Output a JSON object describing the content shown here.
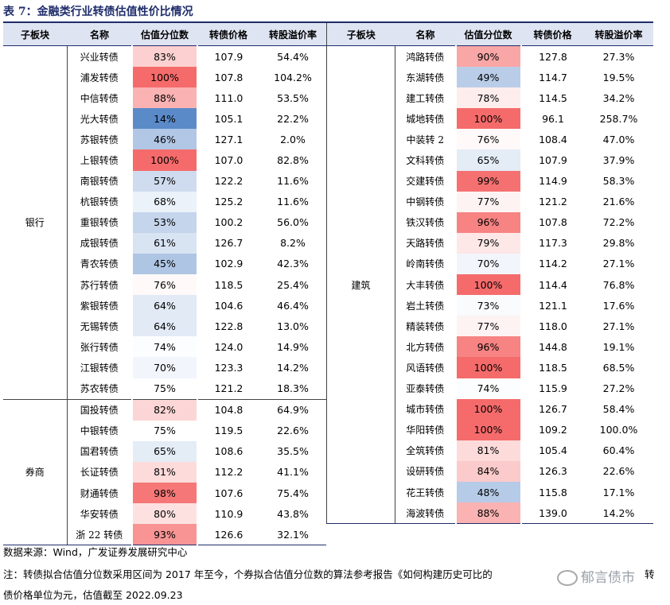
{
  "title": "表 7：金融类行业转债估值性价比情况",
  "headers": [
    "子板块",
    "名称",
    "估值分位数",
    "转债价格",
    "转股溢价率"
  ],
  "left": {
    "groups": [
      {
        "name": "银行",
        "rows": [
          [
            "兴业转债",
            "83%",
            "107.9",
            "54.4%"
          ],
          [
            "浦发转债",
            "100%",
            "107.8",
            "104.2%"
          ],
          [
            "中信转债",
            "88%",
            "111.0",
            "53.5%"
          ],
          [
            "光大转债",
            "14%",
            "105.1",
            "22.2%"
          ],
          [
            "苏银转债",
            "46%",
            "127.1",
            "2.0%"
          ],
          [
            "上银转债",
            "100%",
            "107.0",
            "82.8%"
          ],
          [
            "南银转债",
            "57%",
            "122.2",
            "11.6%"
          ],
          [
            "杭银转债",
            "68%",
            "125.2",
            "11.6%"
          ],
          [
            "重银转债",
            "53%",
            "100.2",
            "56.0%"
          ],
          [
            "成银转债",
            "61%",
            "126.7",
            "8.2%"
          ],
          [
            "青农转债",
            "45%",
            "102.9",
            "42.3%"
          ],
          [
            "苏行转债",
            "76%",
            "118.5",
            "25.4%"
          ],
          [
            "紫银转债",
            "64%",
            "104.6",
            "46.4%"
          ],
          [
            "无锡转债",
            "64%",
            "122.8",
            "13.0%"
          ],
          [
            "张行转债",
            "74%",
            "124.0",
            "14.9%"
          ],
          [
            "江银转债",
            "70%",
            "123.3",
            "14.2%"
          ],
          [
            "苏农转债",
            "75%",
            "121.2",
            "18.3%"
          ]
        ]
      },
      {
        "name": "券商",
        "rows": [
          [
            "国投转债",
            "82%",
            "104.8",
            "64.9%"
          ],
          [
            "中银转债",
            "75%",
            "119.5",
            "22.6%"
          ],
          [
            "国君转债",
            "65%",
            "108.6",
            "35.5%"
          ],
          [
            "长证转债",
            "81%",
            "112.2",
            "41.1%"
          ],
          [
            "财通转债",
            "98%",
            "107.6",
            "75.4%"
          ],
          [
            "华安转债",
            "80%",
            "110.9",
            "43.8%"
          ],
          [
            "浙 22 转债",
            "93%",
            "126.6",
            "32.1%"
          ]
        ]
      }
    ]
  },
  "right": {
    "groups": [
      {
        "name": "建筑",
        "rows": [
          [
            "鸿路转债",
            "90%",
            "127.8",
            "27.3%"
          ],
          [
            "东湖转债",
            "49%",
            "114.7",
            "19.5%"
          ],
          [
            "建工转债",
            "78%",
            "114.5",
            "34.2%"
          ],
          [
            "城地转债",
            "100%",
            "96.1",
            "258.7%"
          ],
          [
            "中装转 2",
            "76%",
            "108.4",
            "47.0%"
          ],
          [
            "文科转债",
            "65%",
            "107.9",
            "37.9%"
          ],
          [
            "交建转债",
            "99%",
            "114.9",
            "58.3%"
          ],
          [
            "中钢转债",
            "77%",
            "121.2",
            "21.6%"
          ],
          [
            "铁汉转债",
            "96%",
            "107.8",
            "72.2%"
          ],
          [
            "天路转债",
            "79%",
            "117.3",
            "29.8%"
          ],
          [
            "岭南转债",
            "70%",
            "114.2",
            "27.1%"
          ],
          [
            "大丰转债",
            "100%",
            "114.4",
            "76.8%"
          ],
          [
            "岩土转债",
            "73%",
            "121.1",
            "17.6%"
          ],
          [
            "精装转债",
            "77%",
            "118.0",
            "27.1%"
          ],
          [
            "北方转债",
            "96%",
            "144.8",
            "19.1%"
          ],
          [
            "风语转债",
            "100%",
            "118.5",
            "68.5%"
          ],
          [
            "亚泰转债",
            "74%",
            "115.9",
            "27.2%"
          ],
          [
            "城市转债",
            "100%",
            "126.7",
            "58.4%"
          ],
          [
            "华阳转债",
            "100%",
            "109.2",
            "100.0%"
          ],
          [
            "全筑转债",
            "81%",
            "105.4",
            "60.4%"
          ],
          [
            "设研转债",
            "84%",
            "126.3",
            "22.6%"
          ],
          [
            "花王转债",
            "48%",
            "115.8",
            "17.1%"
          ],
          [
            "海波转债",
            "88%",
            "139.0",
            "14.2%"
          ]
        ]
      }
    ]
  },
  "heat_colors": {
    "low": "#5b8ac9",
    "mid": "#ffffff",
    "high": "#f56b6b"
  },
  "source": "数据来源：Wind，广发证券发展研究中心",
  "note_line1": "注：转债拟合估值分位数采用区间为 2017 年至今，个券拟合估值分位数的算法参考报告《如何构建历史可比的",
  "note_line1_tail": "转",
  "note_line2": "债价格单位为元，估值截至 2022.09.23",
  "watermark": "郁言债市"
}
